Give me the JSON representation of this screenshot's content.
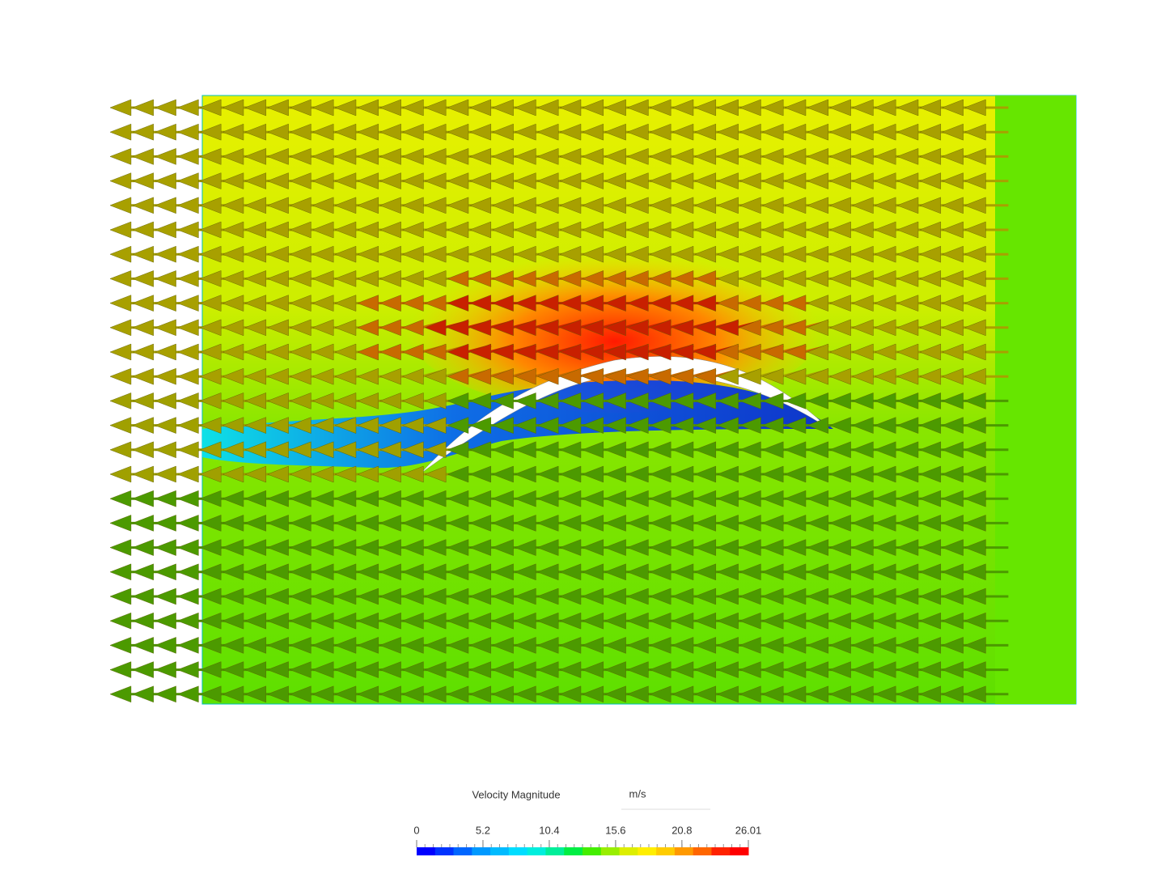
{
  "colorbar": {
    "title": "Velocity Magnitude",
    "unit": "m/s",
    "range": [
      0,
      26.01
    ],
    "ticks": [
      0,
      5.2,
      10.4,
      15.6,
      20.8,
      26.01
    ],
    "colors": [
      "#0000ff",
      "#0033ff",
      "#0066ff",
      "#0099ff",
      "#00bbff",
      "#00ddff",
      "#00eedd",
      "#00ee99",
      "#00ee44",
      "#44ee00",
      "#99ee00",
      "#ddee00",
      "#ffee00",
      "#ffcc00",
      "#ff9900",
      "#ff6600",
      "#ff2200",
      "#ff0000"
    ]
  }
}
